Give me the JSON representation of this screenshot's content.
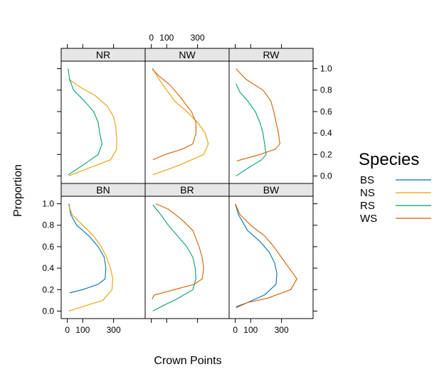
{
  "chart_data": {
    "type": "line",
    "xlabel": "Crown Points",
    "ylabel": "Proportion",
    "xlim": [
      -40,
      505
    ],
    "ylim": [
      -0.07,
      1.07
    ],
    "x_ticks": [
      0,
      100,
      300
    ],
    "x_tick_labels": [
      "0",
      "100",
      "300"
    ],
    "y_ticks": [
      0.0,
      0.2,
      0.4,
      0.6,
      0.8,
      1.0
    ],
    "y_tick_labels": [
      "0.0",
      "0.2",
      "0.4",
      "0.6",
      "0.8",
      "1.0"
    ],
    "legend": {
      "title": "Species",
      "position": "right",
      "entries": [
        {
          "label": "BS",
          "color": "#0072B2"
        },
        {
          "label": "NS",
          "color": "#E69F00"
        },
        {
          "label": "RS",
          "color": "#009E73"
        },
        {
          "label": "WS",
          "color": "#D55E00"
        }
      ]
    },
    "panels": [
      {
        "name": "BN",
        "series": [
          {
            "name": "BS",
            "points": [
              [
                10,
                1.0
              ],
              [
                22,
                0.9
              ],
              [
                60,
                0.8
              ],
              [
                140,
                0.7
              ],
              [
                200,
                0.6
              ],
              [
                240,
                0.5
              ],
              [
                250,
                0.4
              ],
              [
                245,
                0.3
              ],
              [
                200,
                0.25
              ],
              [
                100,
                0.2
              ],
              [
                15,
                0.17
              ]
            ]
          },
          {
            "name": "NS",
            "points": [
              [
                10,
                0.98
              ],
              [
                30,
                0.9
              ],
              [
                100,
                0.8
              ],
              [
                170,
                0.7
              ],
              [
                220,
                0.6
              ],
              [
                255,
                0.5
              ],
              [
                280,
                0.4
              ],
              [
                295,
                0.3
              ],
              [
                290,
                0.2
              ],
              [
                230,
                0.1
              ],
              [
                140,
                0.06
              ],
              [
                10,
                0.0
              ]
            ]
          }
        ]
      },
      {
        "name": "BR",
        "series": [
          {
            "name": "RS",
            "points": [
              [
                10,
                0.99
              ],
              [
                60,
                0.9
              ],
              [
                110,
                0.8
              ],
              [
                170,
                0.7
              ],
              [
                230,
                0.6
              ],
              [
                270,
                0.5
              ],
              [
                285,
                0.4
              ],
              [
                290,
                0.3
              ],
              [
                270,
                0.2
              ],
              [
                150,
                0.1
              ],
              [
                90,
                0.06
              ],
              [
                10,
                0.0
              ]
            ]
          },
          {
            "name": "WS",
            "points": [
              [
                30,
                1.0
              ],
              [
                110,
                0.95
              ],
              [
                200,
                0.85
              ],
              [
                270,
                0.75
              ],
              [
                310,
                0.6
              ],
              [
                330,
                0.5
              ],
              [
                340,
                0.4
              ],
              [
                330,
                0.3
              ],
              [
                280,
                0.25
              ],
              [
                150,
                0.2
              ],
              [
                20,
                0.15
              ],
              [
                5,
                0.11
              ]
            ]
          }
        ]
      },
      {
        "name": "BW",
        "series": [
          {
            "name": "BS",
            "points": [
              [
                0,
                1.0
              ],
              [
                20,
                0.9
              ],
              [
                80,
                0.75
              ],
              [
                160,
                0.65
              ],
              [
                220,
                0.55
              ],
              [
                255,
                0.45
              ],
              [
                270,
                0.35
              ],
              [
                265,
                0.25
              ],
              [
                190,
                0.15
              ],
              [
                80,
                0.08
              ],
              [
                5,
                0.04
              ]
            ]
          },
          {
            "name": "WS",
            "points": [
              [
                0,
                1.0
              ],
              [
                30,
                0.9
              ],
              [
                100,
                0.8
              ],
              [
                190,
                0.7
              ],
              [
                250,
                0.6
              ],
              [
                300,
                0.5
              ],
              [
                350,
                0.4
              ],
              [
                400,
                0.3
              ],
              [
                360,
                0.2
              ],
              [
                210,
                0.12
              ],
              [
                80,
                0.08
              ],
              [
                5,
                0.03
              ]
            ]
          }
        ]
      },
      {
        "name": "NR",
        "series": [
          {
            "name": "NS",
            "points": [
              [
                10,
                0.9
              ],
              [
                80,
                0.83
              ],
              [
                180,
                0.75
              ],
              [
                260,
                0.65
              ],
              [
                300,
                0.55
              ],
              [
                315,
                0.45
              ],
              [
                320,
                0.35
              ],
              [
                320,
                0.25
              ],
              [
                280,
                0.15
              ],
              [
                150,
                0.08
              ],
              [
                10,
                0.0
              ]
            ]
          },
          {
            "name": "RS",
            "points": [
              [
                5,
                1.0
              ],
              [
                15,
                0.9
              ],
              [
                40,
                0.8
              ],
              [
                110,
                0.7
              ],
              [
                170,
                0.6
              ],
              [
                200,
                0.5
              ],
              [
                210,
                0.4
              ],
              [
                225,
                0.3
              ],
              [
                200,
                0.2
              ],
              [
                100,
                0.1
              ],
              [
                5,
                0.01
              ]
            ]
          }
        ]
      },
      {
        "name": "NW",
        "series": [
          {
            "name": "NS",
            "points": [
              [
                10,
                1.0
              ],
              [
                50,
                0.9
              ],
              [
                100,
                0.8
              ],
              [
                150,
                0.7
              ],
              [
                230,
                0.6
              ],
              [
                300,
                0.5
              ],
              [
                350,
                0.4
              ],
              [
                370,
                0.3
              ],
              [
                340,
                0.2
              ],
              [
                180,
                0.1
              ],
              [
                10,
                0.01
              ]
            ]
          },
          {
            "name": "WS",
            "points": [
              [
                5,
                1.0
              ],
              [
                50,
                0.93
              ],
              [
                120,
                0.85
              ],
              [
                180,
                0.75
              ],
              [
                260,
                0.6
              ],
              [
                290,
                0.5
              ],
              [
                290,
                0.4
              ],
              [
                270,
                0.3
              ],
              [
                200,
                0.25
              ],
              [
                90,
                0.2
              ],
              [
                10,
                0.15
              ]
            ]
          }
        ]
      },
      {
        "name": "RW",
        "series": [
          {
            "name": "RS",
            "points": [
              [
                5,
                0.86
              ],
              [
                30,
                0.78
              ],
              [
                80,
                0.7
              ],
              [
                130,
                0.6
              ],
              [
                160,
                0.5
              ],
              [
                180,
                0.4
              ],
              [
                190,
                0.3
              ],
              [
                200,
                0.2
              ],
              [
                170,
                0.15
              ],
              [
                90,
                0.08
              ],
              [
                5,
                0.0
              ]
            ]
          },
          {
            "name": "WS",
            "points": [
              [
                5,
                1.0
              ],
              [
                70,
                0.9
              ],
              [
                180,
                0.8
              ],
              [
                230,
                0.7
              ],
              [
                250,
                0.6
              ],
              [
                265,
                0.5
              ],
              [
                280,
                0.4
              ],
              [
                290,
                0.3
              ],
              [
                260,
                0.25
              ],
              [
                160,
                0.2
              ],
              [
                10,
                0.14
              ]
            ]
          }
        ]
      }
    ]
  }
}
